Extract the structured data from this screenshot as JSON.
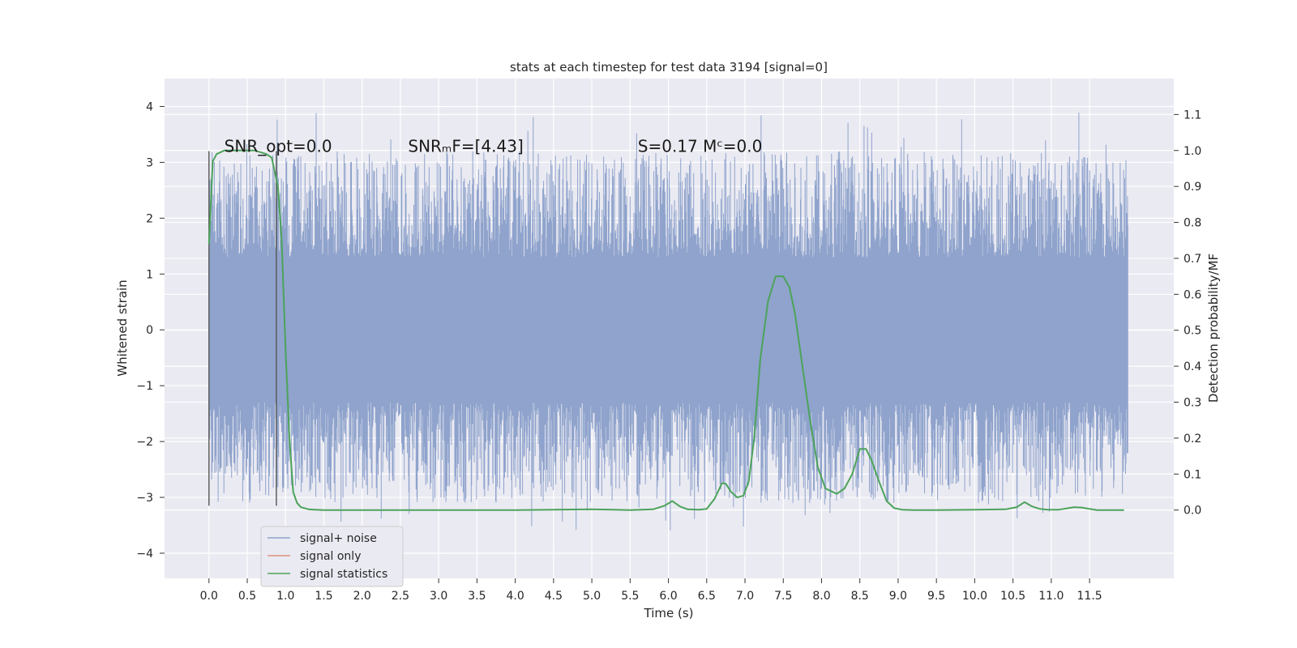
{
  "chart_data": {
    "type": "line",
    "title": "stats at each timestep for test data 3194 [signal=0]",
    "xlabel": "Time (s)",
    "ylabel": "Whitened strain",
    "y2label": "Detection probability/MF",
    "xlim": [
      -0.58,
      12.6
    ],
    "ylim": [
      -4.45,
      4.5
    ],
    "y2lim": [
      -0.19,
      1.2
    ],
    "x_ticks": [
      0.0,
      0.5,
      1.0,
      1.5,
      2.0,
      2.5,
      3.0,
      3.5,
      4.0,
      4.5,
      5.0,
      5.5,
      6.0,
      6.5,
      7.0,
      7.5,
      8.0,
      8.5,
      9.0,
      9.5,
      10.0,
      10.5,
      11.0,
      11.5
    ],
    "x_tick_labels": [
      "0.0",
      "0.5",
      "1.0",
      "1.5",
      "2.0",
      "2.5",
      "3.0",
      "3.5",
      "4.0",
      "4.5",
      "5.0",
      "5.5",
      "6.0",
      "6.5",
      "7.0",
      "7.5",
      "8.0",
      "8.5",
      "9.0",
      "9.5",
      "10.0",
      "10.5",
      "11.0",
      "11.5"
    ],
    "y_ticks": [
      -4,
      -3,
      -2,
      -1,
      0,
      1,
      2,
      3,
      4
    ],
    "y_tick_labels": [
      "−4",
      "−3",
      "−2",
      "−1",
      "0",
      "1",
      "2",
      "3",
      "4"
    ],
    "y2_ticks": [
      0.0,
      0.1,
      0.2,
      0.3,
      0.4,
      0.5,
      0.6,
      0.7,
      0.8,
      0.9,
      1.0,
      1.1
    ],
    "y2_tick_labels": [
      "0.0",
      "0.1",
      "0.2",
      "0.3",
      "0.4",
      "0.5",
      "0.6",
      "0.7",
      "0.8",
      "0.9",
      "1.0",
      "1.1"
    ],
    "grid": true,
    "legend_position": "lower-left",
    "annotations": [
      {
        "text": "SNR_opt=0.0",
        "x": 0.2,
        "y": 3.3
      },
      {
        "text": "SNRₘF=[4.43]",
        "x": 2.6,
        "y": 3.3
      },
      {
        "text": "S=0.17   Mᶜ=0.0",
        "x": 5.6,
        "y": 3.3
      }
    ],
    "vlines": [
      {
        "x": 0.0,
        "ymin": -3.15,
        "ymax": 3.2
      },
      {
        "x": 0.88,
        "ymin": -3.15,
        "ymax": 3.2
      }
    ],
    "series": [
      {
        "name": "signal+ noise",
        "color": "#8fa3cc",
        "axis": "left",
        "x_range": [
          0.0,
          12.0
        ],
        "envelope": {
          "core_low": -1.3,
          "core_high": 1.3,
          "spike_min": -3.65,
          "spike_max": 4.1
        }
      },
      {
        "name": "signal only",
        "color": "#e0937a",
        "axis": "left",
        "x": [],
        "y": []
      },
      {
        "name": "signal statistics",
        "color": "#4ca35a",
        "axis": "right",
        "x": [
          0.0,
          0.05,
          0.1,
          0.2,
          0.4,
          0.6,
          0.75,
          0.82,
          0.9,
          0.95,
          1.0,
          1.05,
          1.1,
          1.15,
          1.2,
          1.3,
          1.5,
          2.0,
          3.0,
          4.0,
          5.0,
          5.5,
          5.8,
          5.95,
          6.05,
          6.15,
          6.25,
          6.4,
          6.5,
          6.6,
          6.7,
          6.75,
          6.82,
          6.9,
          6.98,
          7.05,
          7.12,
          7.2,
          7.3,
          7.4,
          7.5,
          7.58,
          7.65,
          7.75,
          7.85,
          7.95,
          8.05,
          8.2,
          8.3,
          8.4,
          8.5,
          8.58,
          8.65,
          8.75,
          8.85,
          8.95,
          9.05,
          9.2,
          9.5,
          10.0,
          10.4,
          10.55,
          10.65,
          10.75,
          10.85,
          10.95,
          11.1,
          11.3,
          11.4,
          11.5,
          11.6,
          11.8,
          11.95
        ],
        "y": [
          0.74,
          0.97,
          0.99,
          1.0,
          1.0,
          1.0,
          0.99,
          0.98,
          0.9,
          0.75,
          0.45,
          0.2,
          0.05,
          0.02,
          0.008,
          0.002,
          0.0,
          0.0,
          0.0,
          0.0,
          0.002,
          0.0,
          0.002,
          0.012,
          0.025,
          0.01,
          0.002,
          0.001,
          0.003,
          0.03,
          0.075,
          0.073,
          0.05,
          0.035,
          0.04,
          0.08,
          0.2,
          0.42,
          0.58,
          0.65,
          0.65,
          0.62,
          0.55,
          0.4,
          0.25,
          0.12,
          0.06,
          0.045,
          0.06,
          0.1,
          0.17,
          0.17,
          0.14,
          0.08,
          0.025,
          0.005,
          0.001,
          0.0,
          0.0,
          0.001,
          0.002,
          0.008,
          0.022,
          0.01,
          0.003,
          0.001,
          0.001,
          0.008,
          0.007,
          0.003,
          0.0,
          0.0,
          0.0
        ]
      }
    ]
  }
}
